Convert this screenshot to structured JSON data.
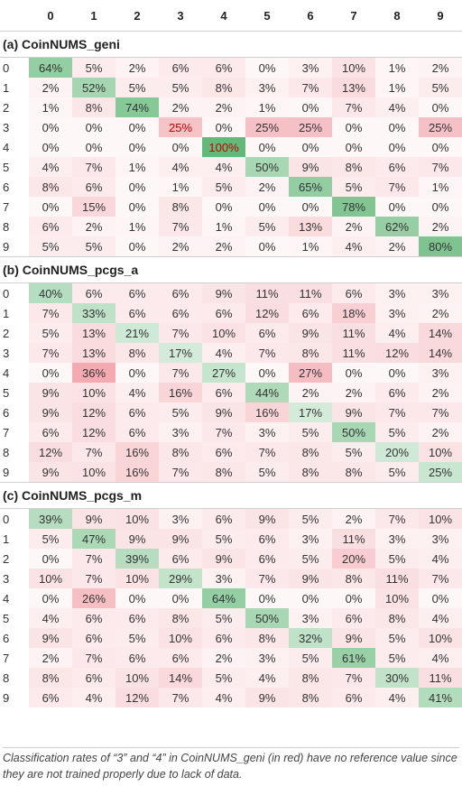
{
  "columns": [
    "0",
    "1",
    "2",
    "3",
    "4",
    "5",
    "6",
    "7",
    "8",
    "9"
  ],
  "sections": [
    {
      "title": "(a) CoinNUMS_geni",
      "rows": [
        [
          "64%",
          "5%",
          "2%",
          "6%",
          "6%",
          "0%",
          "3%",
          "10%",
          "1%",
          "2%"
        ],
        [
          "2%",
          "52%",
          "5%",
          "5%",
          "8%",
          "3%",
          "7%",
          "13%",
          "1%",
          "5%"
        ],
        [
          "1%",
          "8%",
          "74%",
          "2%",
          "2%",
          "1%",
          "0%",
          "7%",
          "4%",
          "0%"
        ],
        [
          "0%",
          "0%",
          "0%",
          "25%",
          "0%",
          "25%",
          "25%",
          "0%",
          "0%",
          "25%"
        ],
        [
          "0%",
          "0%",
          "0%",
          "0%",
          "100%",
          "0%",
          "0%",
          "0%",
          "0%",
          "0%"
        ],
        [
          "4%",
          "7%",
          "1%",
          "4%",
          "4%",
          "50%",
          "9%",
          "8%",
          "6%",
          "7%"
        ],
        [
          "8%",
          "6%",
          "0%",
          "1%",
          "5%",
          "2%",
          "65%",
          "5%",
          "7%",
          "1%"
        ],
        [
          "0%",
          "15%",
          "0%",
          "8%",
          "0%",
          "0%",
          "0%",
          "78%",
          "0%",
          "0%"
        ],
        [
          "6%",
          "2%",
          "1%",
          "7%",
          "1%",
          "5%",
          "13%",
          "2%",
          "62%",
          "2%"
        ],
        [
          "5%",
          "5%",
          "0%",
          "2%",
          "2%",
          "0%",
          "1%",
          "4%",
          "2%",
          "80%"
        ]
      ],
      "red_cells": [
        [
          3,
          3
        ],
        [
          4,
          4
        ]
      ]
    },
    {
      "title": "(b) CoinNUMS_pcgs_a",
      "rows": [
        [
          "40%",
          "6%",
          "6%",
          "6%",
          "9%",
          "11%",
          "11%",
          "6%",
          "3%",
          "3%"
        ],
        [
          "7%",
          "33%",
          "6%",
          "6%",
          "6%",
          "12%",
          "6%",
          "18%",
          "3%",
          "2%"
        ],
        [
          "5%",
          "13%",
          "21%",
          "7%",
          "10%",
          "6%",
          "9%",
          "11%",
          "4%",
          "14%"
        ],
        [
          "7%",
          "13%",
          "8%",
          "17%",
          "4%",
          "7%",
          "8%",
          "11%",
          "12%",
          "14%"
        ],
        [
          "0%",
          "36%",
          "0%",
          "7%",
          "27%",
          "0%",
          "27%",
          "0%",
          "0%",
          "3%"
        ],
        [
          "9%",
          "10%",
          "4%",
          "16%",
          "6%",
          "44%",
          "2%",
          "2%",
          "6%",
          "2%"
        ],
        [
          "9%",
          "12%",
          "6%",
          "5%",
          "9%",
          "16%",
          "17%",
          "9%",
          "7%",
          "7%"
        ],
        [
          "6%",
          "12%",
          "6%",
          "3%",
          "7%",
          "3%",
          "5%",
          "50%",
          "5%",
          "2%"
        ],
        [
          "12%",
          "7%",
          "16%",
          "8%",
          "6%",
          "7%",
          "8%",
          "5%",
          "20%",
          "10%"
        ],
        [
          "9%",
          "10%",
          "16%",
          "7%",
          "8%",
          "5%",
          "8%",
          "8%",
          "5%",
          "25%"
        ]
      ],
      "red_cells": []
    },
    {
      "title": "(c) CoinNUMS_pcgs_m",
      "rows": [
        [
          "39%",
          "9%",
          "10%",
          "3%",
          "6%",
          "9%",
          "5%",
          "2%",
          "7%",
          "10%"
        ],
        [
          "5%",
          "47%",
          "9%",
          "9%",
          "5%",
          "6%",
          "3%",
          "11%",
          "3%",
          "3%"
        ],
        [
          "0%",
          "7%",
          "39%",
          "6%",
          "9%",
          "6%",
          "5%",
          "20%",
          "5%",
          "4%"
        ],
        [
          "10%",
          "7%",
          "10%",
          "29%",
          "3%",
          "7%",
          "9%",
          "8%",
          "11%",
          "7%"
        ],
        [
          "0%",
          "26%",
          "0%",
          "0%",
          "64%",
          "0%",
          "0%",
          "0%",
          "10%",
          "0%"
        ],
        [
          "4%",
          "6%",
          "6%",
          "8%",
          "5%",
          "50%",
          "3%",
          "6%",
          "8%",
          "4%"
        ],
        [
          "9%",
          "6%",
          "5%",
          "10%",
          "6%",
          "8%",
          "32%",
          "9%",
          "5%",
          "10%"
        ],
        [
          "2%",
          "7%",
          "6%",
          "6%",
          "2%",
          "3%",
          "5%",
          "61%",
          "5%",
          "4%"
        ],
        [
          "8%",
          "6%",
          "10%",
          "14%",
          "5%",
          "4%",
          "8%",
          "7%",
          "30%",
          "11%"
        ],
        [
          "6%",
          "4%",
          "12%",
          "7%",
          "4%",
          "9%",
          "8%",
          "6%",
          "4%",
          "41%"
        ]
      ],
      "red_cells": []
    }
  ],
  "colors": {
    "diag_hue": "#53b06a",
    "offdiag_hue": "#e8606c",
    "red_text": "#c00000"
  },
  "footnote": "Classification rates of “3” and “4” in CoinNUMS_geni (in red) have no reference value since they are not trained properly due to lack of data."
}
